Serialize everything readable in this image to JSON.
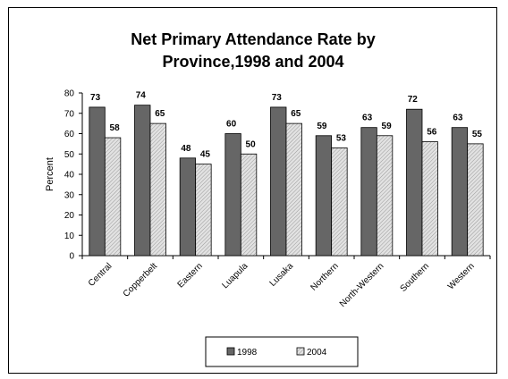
{
  "chart_data": {
    "type": "bar",
    "title_lines": [
      "Net Primary Attendance Rate by",
      "Province,1998 and 2004"
    ],
    "xlabel": "",
    "ylabel": "Percent",
    "ylim": [
      0,
      80
    ],
    "yticks": [
      0,
      10,
      20,
      30,
      40,
      50,
      60,
      70,
      80
    ],
    "categories": [
      "Central",
      "Copperbelt",
      "Eastern",
      "Luapula",
      "Lusaka",
      "Northern",
      "North-Western",
      "Southern",
      "Western"
    ],
    "series": [
      {
        "name": "1998",
        "values": [
          73,
          74,
          48,
          60,
          73,
          59,
          63,
          72,
          63
        ],
        "color": "#666666"
      },
      {
        "name": "2004",
        "values": [
          58,
          65,
          45,
          50,
          65,
          53,
          59,
          56,
          55
        ],
        "color": "#cfcfcf"
      }
    ],
    "legend_position": "bottom",
    "grid": false
  }
}
